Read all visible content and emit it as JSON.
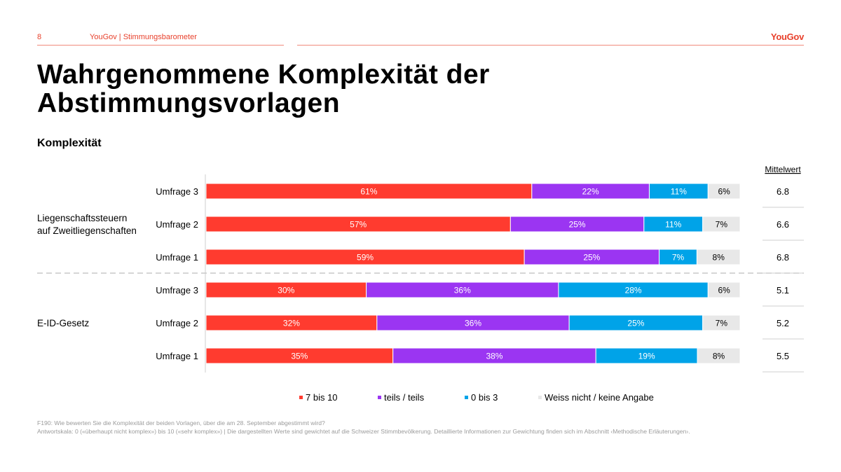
{
  "header": {
    "page_number": "8",
    "source_text": "YouGov | Stimmungsbarometer",
    "logo": "YouGov"
  },
  "title": "Wahrgenommene Komplexität der Abstimmungsvorlagen",
  "subtitle": "Komplexität",
  "colors": {
    "accent": "#e8412c",
    "series": [
      "#ff3b2f",
      "#9b35f2",
      "#00a3e8",
      "#e8e8e8"
    ]
  },
  "chart_data": {
    "type": "bar",
    "orientation": "horizontal",
    "stacked": true,
    "xlim": [
      0,
      100
    ],
    "unit": "%",
    "mean_header": "Mittelwert",
    "groups": [
      {
        "label": "Liegenschaftssteuern auf Zweitliegenschaften",
        "rows": [
          {
            "label": "Umfrage 3",
            "values": [
              61,
              22,
              11,
              6
            ],
            "mean": "6.8"
          },
          {
            "label": "Umfrage 2",
            "values": [
              57,
              25,
              11,
              7
            ],
            "mean": "6.6"
          },
          {
            "label": "Umfrage 1",
            "values": [
              59,
              25,
              7,
              8
            ],
            "mean": "6.8"
          }
        ]
      },
      {
        "label": "E-ID-Gesetz",
        "rows": [
          {
            "label": "Umfrage 3",
            "values": [
              30,
              36,
              28,
              6
            ],
            "mean": "5.1"
          },
          {
            "label": "Umfrage 2",
            "values": [
              32,
              36,
              25,
              7
            ],
            "mean": "5.2"
          },
          {
            "label": "Umfrage 1",
            "values": [
              35,
              38,
              19,
              8
            ],
            "mean": "5.5"
          }
        ]
      }
    ],
    "series": [
      {
        "name": "7 bis 10"
      },
      {
        "name": "teils / teils"
      },
      {
        "name": "0 bis 3"
      },
      {
        "name": "Weiss nicht / keine Angabe"
      }
    ],
    "legend_position": "bottom"
  },
  "footnote": {
    "line1": "F190: Wie bewerten Sie die Komplexität der beiden Vorlagen, über die am 28. September abgestimmt wird?",
    "line2": "Antwortskala: 0 («überhaupt nicht komplex») bis 10 («sehr komplex») | Die dargestellten Werte sind gewichtet auf die Schweizer Stimmbevölkerung. Detaillierte Informationen zur Gewichtung finden sich im Abschnitt ‹Methodische Erläuterungen›."
  }
}
